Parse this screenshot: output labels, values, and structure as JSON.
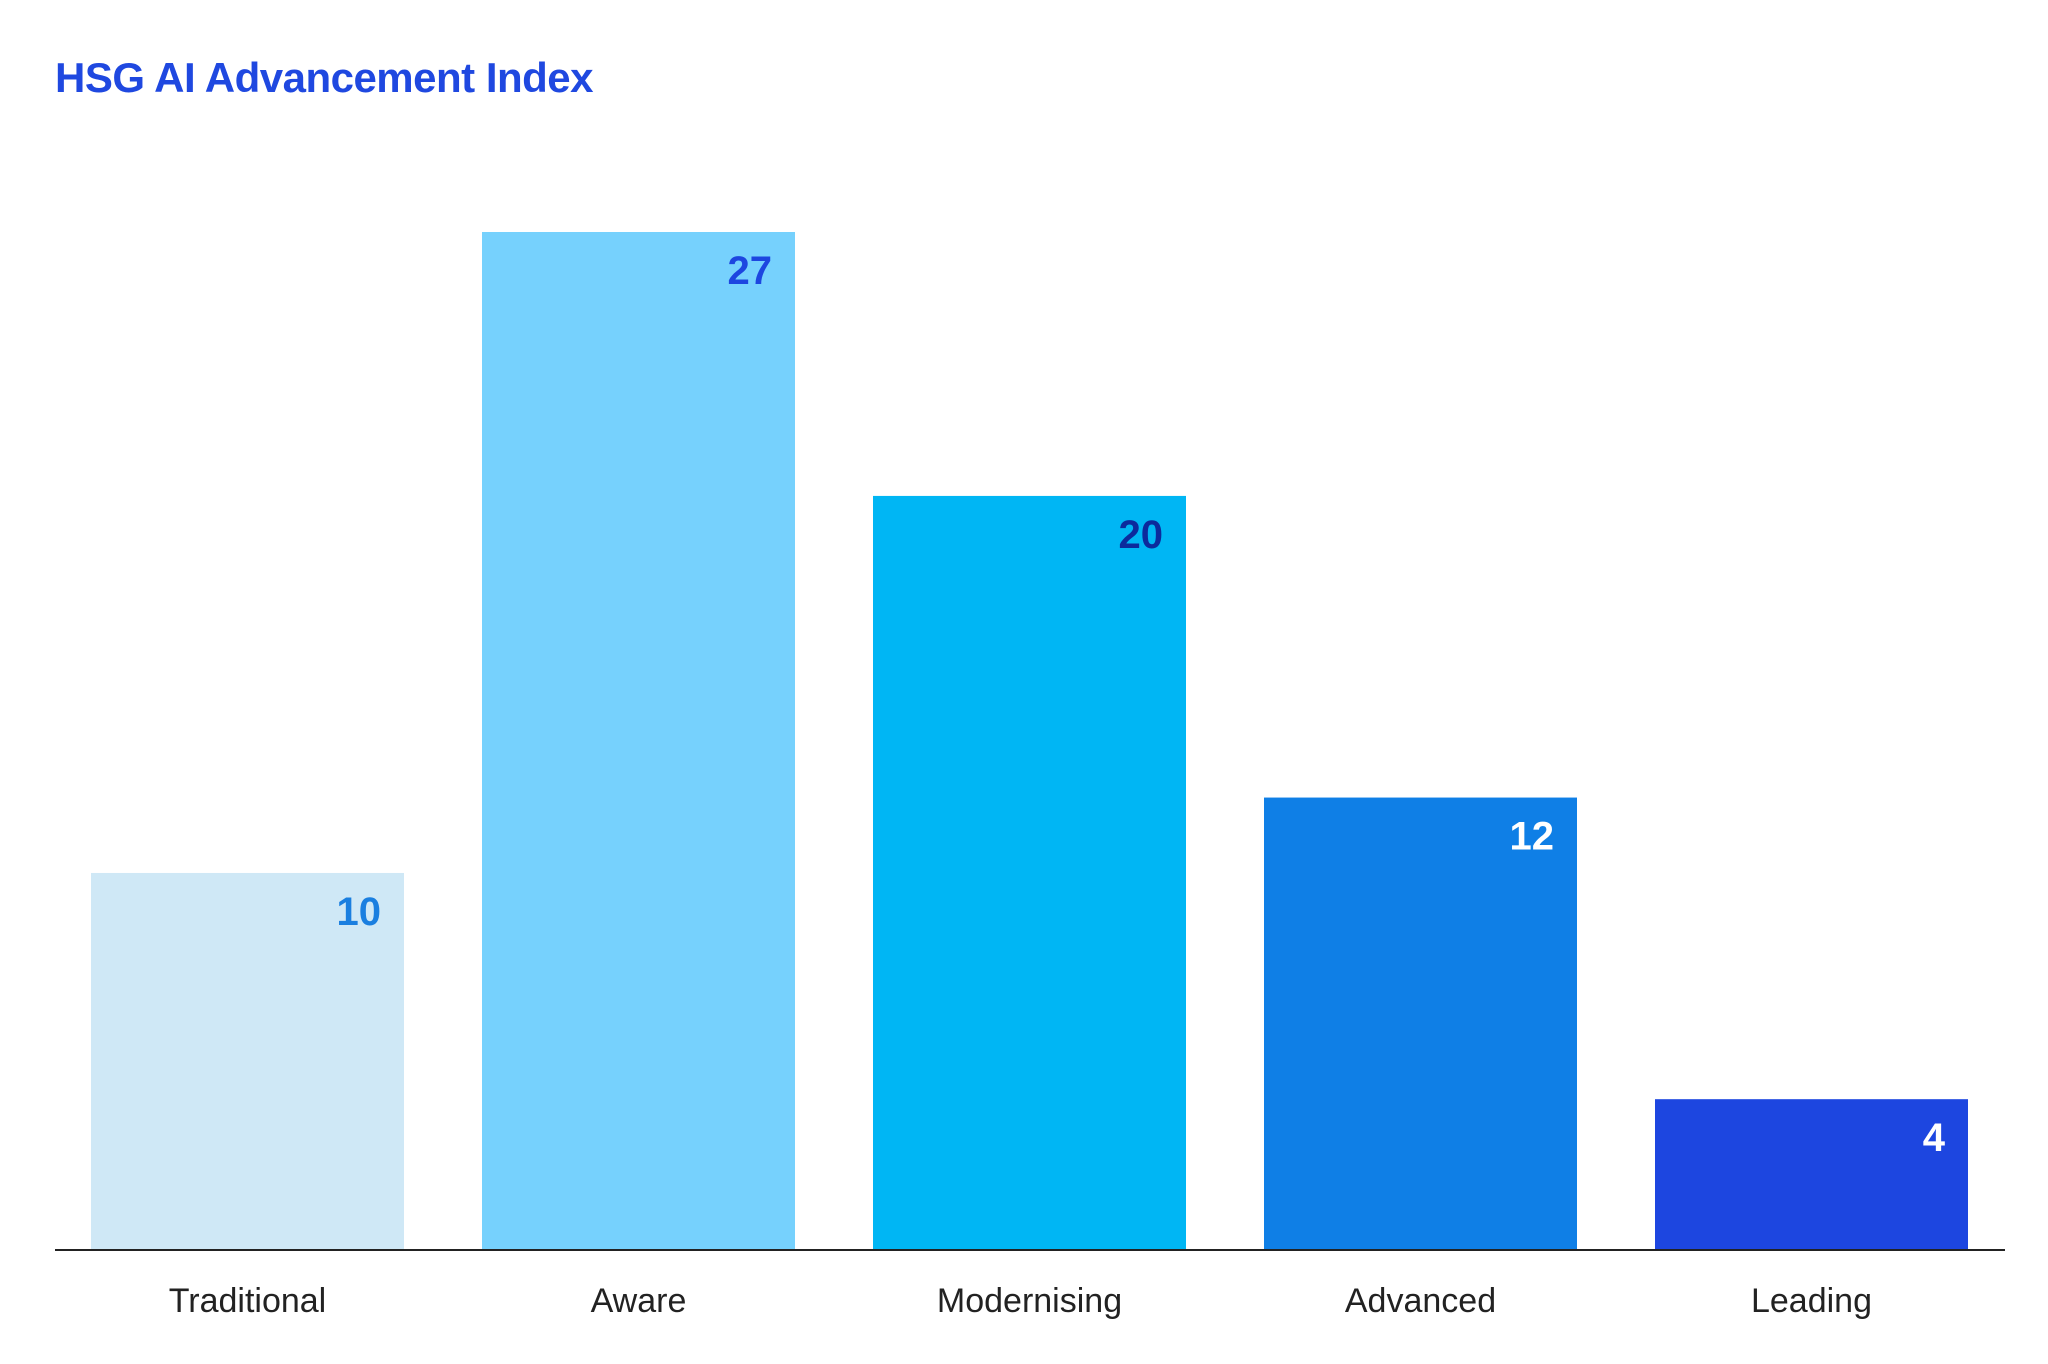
{
  "chart_data": {
    "type": "bar",
    "title": "HSG AI Advancement Index",
    "categories": [
      "Traditional",
      "Aware",
      "Modernising",
      "Advanced",
      "Leading"
    ],
    "values": [
      10,
      27,
      20,
      12,
      4
    ],
    "xlabel": "",
    "ylabel": "",
    "ylim": [
      0,
      27
    ],
    "grid": false,
    "legend": "none",
    "bar_colors": [
      "#cfe8f6",
      "#76d1fd",
      "#00b6f4",
      "#0f7fe6",
      "#1d46e0"
    ],
    "value_label_colors": [
      "#1a7fe0",
      "#1d46e0",
      "#0c2a9c",
      "#ffffff",
      "#ffffff"
    ],
    "axis_color": "#222222",
    "title_color": "#1f48e0"
  }
}
